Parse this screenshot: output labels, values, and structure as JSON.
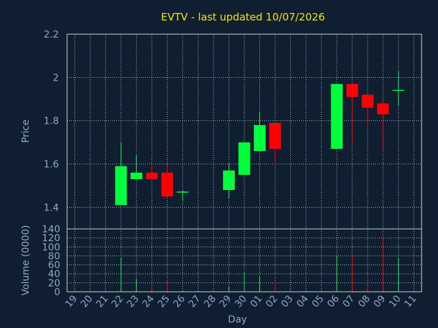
{
  "chart_data": {
    "type": "candlestick",
    "title": "EVTV - last updated 10/07/2026",
    "xlabel": "Day",
    "ylabel_price": "Price",
    "ylabel_volume": "Volume (0000)",
    "price_ticks": [
      "1.4",
      "1.6",
      "1.8",
      "2",
      "2.2"
    ],
    "price_ylim": [
      1.3,
      2.2
    ],
    "volume_ticks": [
      "0",
      "20",
      "40",
      "60",
      "80",
      "100",
      "120",
      "140"
    ],
    "volume_ylim": [
      0,
      140
    ],
    "categories": [
      "19",
      "20",
      "21",
      "22",
      "23",
      "24",
      "25",
      "26",
      "27",
      "28",
      "29",
      "30",
      "01",
      "02",
      "03",
      "04",
      "05",
      "06",
      "07",
      "08",
      "09",
      "10",
      "11"
    ],
    "candles": [
      {
        "day": "22",
        "open": 1.41,
        "high": 1.7,
        "low": 1.41,
        "close": 1.59
      },
      {
        "day": "23",
        "open": 1.53,
        "high": 1.64,
        "low": 1.53,
        "close": 1.56
      },
      {
        "day": "24",
        "open": 1.56,
        "high": 1.61,
        "low": 1.53,
        "close": 1.53
      },
      {
        "day": "25",
        "open": 1.56,
        "high": 1.6,
        "low": 1.45,
        "close": 1.45
      },
      {
        "day": "26",
        "open": 1.47,
        "high": 1.48,
        "low": 1.43,
        "close": 1.47
      },
      {
        "day": "29",
        "open": 1.48,
        "high": 1.6,
        "low": 1.44,
        "close": 1.57
      },
      {
        "day": "30",
        "open": 1.55,
        "high": 1.7,
        "low": 1.55,
        "close": 1.7
      },
      {
        "day": "01",
        "open": 1.66,
        "high": 1.84,
        "low": 1.66,
        "close": 1.78
      },
      {
        "day": "02",
        "open": 1.79,
        "high": 1.79,
        "low": 1.6,
        "close": 1.67
      },
      {
        "day": "06",
        "open": 1.67,
        "high": 1.97,
        "low": 1.67,
        "close": 1.97
      },
      {
        "day": "07",
        "open": 1.97,
        "high": 1.97,
        "low": 1.7,
        "close": 1.91
      },
      {
        "day": "08",
        "open": 1.92,
        "high": 1.92,
        "low": 1.78,
        "close": 1.86
      },
      {
        "day": "09",
        "open": 1.88,
        "high": 1.9,
        "low": 1.67,
        "close": 1.83
      },
      {
        "day": "10",
        "open": 1.94,
        "high": 2.03,
        "low": 1.87,
        "close": 1.94
      }
    ],
    "volume": [
      {
        "day": "22",
        "value": 76,
        "up": true
      },
      {
        "day": "23",
        "value": 28,
        "up": true
      },
      {
        "day": "24",
        "value": 14,
        "up": false
      },
      {
        "day": "25",
        "value": 25,
        "up": false
      },
      {
        "day": "26",
        "value": 3,
        "up": true
      },
      {
        "day": "29",
        "value": 12,
        "up": true
      },
      {
        "day": "30",
        "value": 42,
        "up": true
      },
      {
        "day": "01",
        "value": 34,
        "up": true
      },
      {
        "day": "02",
        "value": 22,
        "up": false
      },
      {
        "day": "06",
        "value": 80,
        "up": true
      },
      {
        "day": "07",
        "value": 80,
        "up": false
      },
      {
        "day": "08",
        "value": 15,
        "up": false
      },
      {
        "day": "09",
        "value": 122,
        "up": false
      },
      {
        "day": "10",
        "value": 75,
        "up": true
      }
    ],
    "colors": {
      "up": "#00ff3c",
      "down": "#ff0000",
      "background": "#0f1e30",
      "frame": "#cfd6de",
      "text": "#8fa9c8",
      "title": "#f2e600"
    },
    "grid": true
  }
}
